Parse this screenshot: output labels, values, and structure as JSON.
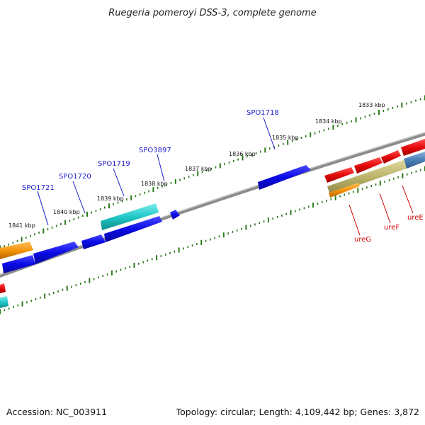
{
  "title": "Ruegeria pomeroyi DSS-3, complete genome",
  "footer": {
    "accession": "Accession: NC_003911",
    "summary": "Topology: circular; Length: 4,109,442 bp; Genes: 3,872"
  },
  "ticks": {
    "kbp_labels": [
      "1833 kbp",
      "1834 kbp",
      "1835 kbp",
      "1836 kbp",
      "1837 kbp",
      "1838 kbp",
      "1839 kbp",
      "1840 kbp",
      "1841 kbp"
    ]
  },
  "gene_labels": {
    "spo1718": "SPO1718",
    "spo3897": "SPO3897",
    "spo1719": "SPO1719",
    "spo1720": "SPO1720",
    "spo1721": "SPO1721",
    "ureG": "ureG",
    "ureF": "ureF",
    "ureE": "ureE"
  },
  "colors": {
    "background": "#ffffff",
    "backbone": "#8c8c8c",
    "tick": "#2a7a1a",
    "gene_blue": "#0a0ae6",
    "gene_cyan": "#21c8c8",
    "gene_red": "#e60a0a",
    "gene_orange": "#f5940a",
    "gene_olive": "#bcb46a",
    "gene_steel": "#4a7fb5",
    "label_blue": "#1a1acc",
    "label_red": "#cc0000"
  }
}
